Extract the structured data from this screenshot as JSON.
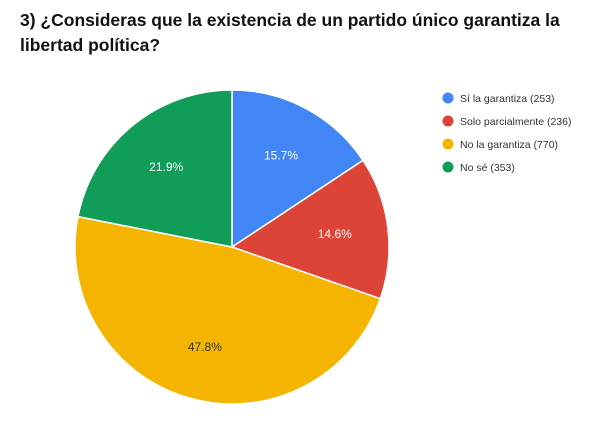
{
  "title": "3) ¿Consideras que la existencia de un partido único garantiza la libertad política?",
  "chart_data": {
    "type": "pie",
    "title": "3) ¿Consideras que la existencia de un partido único garantiza la libertad política?",
    "legend_position": "right",
    "slices": [
      {
        "label": "Sí la garantiza (253)",
        "value": 253,
        "percent_label": "15.7%",
        "color": "#4285F4",
        "label_color": "#ffffff"
      },
      {
        "label": "Solo parcialmente (236)",
        "value": 236,
        "percent_label": "14.6%",
        "color": "#DB4437",
        "label_color": "#ffffff"
      },
      {
        "label": "No la garantiza (770)",
        "value": 770,
        "percent_label": "47.8%",
        "color": "#F4B400",
        "label_color": "#333333"
      },
      {
        "label": "No sé (353)",
        "value": 353,
        "percent_label": "21.9%",
        "color": "#0F9D58",
        "label_color": "#ffffff"
      }
    ]
  }
}
